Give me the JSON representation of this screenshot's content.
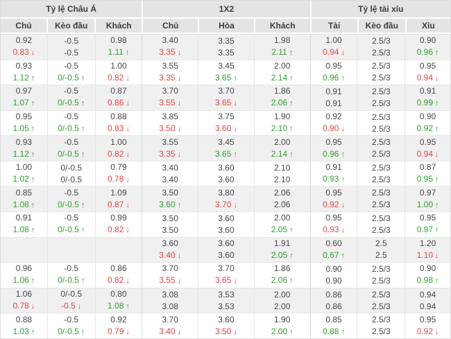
{
  "table": {
    "groups": [
      {
        "label": "Tỷ lệ Châu Á",
        "cols": [
          "Chủ",
          "Kèo đầu",
          "Khách"
        ]
      },
      {
        "label": "1X2",
        "cols": [
          "Chủ",
          "Hòa",
          "Khách"
        ]
      },
      {
        "label": "Tỷ lệ tài xỉu",
        "cols": [
          "Tài",
          "Kèo đầu",
          "Xỉu"
        ]
      }
    ],
    "rows": [
      [
        {
          "t": "0.92",
          "b": "0.83",
          "d": "down"
        },
        {
          "t": "-0.5",
          "b": "-0.5",
          "d": ""
        },
        {
          "t": "0.98",
          "b": "1.11",
          "d": "up"
        },
        {
          "t": "3.40",
          "b": "3.35",
          "d": "down"
        },
        {
          "t": "3.35",
          "b": "3.35",
          "d": ""
        },
        {
          "t": "1.98",
          "b": "2.11",
          "d": "up"
        },
        {
          "t": "1.00",
          "b": "0.94",
          "d": "down"
        },
        {
          "t": "2.5/3",
          "b": "2.5/3",
          "d": ""
        },
        {
          "t": "0.90",
          "b": "0.96",
          "d": "up"
        }
      ],
      [
        {
          "t": "0.93",
          "b": "1.12",
          "d": "up"
        },
        {
          "t": "-0.5",
          "b": "0/-0.5",
          "d": "up"
        },
        {
          "t": "1.00",
          "b": "0.82",
          "d": "down"
        },
        {
          "t": "3.55",
          "b": "3.35",
          "d": "down"
        },
        {
          "t": "3.45",
          "b": "3.65",
          "d": "up"
        },
        {
          "t": "2.00",
          "b": "2.14",
          "d": "up"
        },
        {
          "t": "0.95",
          "b": "0.96",
          "d": "up"
        },
        {
          "t": "2.5/3",
          "b": "2.5/3",
          "d": ""
        },
        {
          "t": "0.95",
          "b": "0.94",
          "d": "down"
        }
      ],
      [
        {
          "t": "0.97",
          "b": "1.07",
          "d": "up"
        },
        {
          "t": "-0.5",
          "b": "0/-0.5",
          "d": "up"
        },
        {
          "t": "0.87",
          "b": "0.86",
          "d": "down"
        },
        {
          "t": "3.70",
          "b": "3.55",
          "d": "down"
        },
        {
          "t": "3.70",
          "b": "3.65",
          "d": "down"
        },
        {
          "t": "1.86",
          "b": "2.06",
          "d": "up"
        },
        {
          "t": "0.91",
          "b": "0.91",
          "d": ""
        },
        {
          "t": "2.5/3",
          "b": "2.5/3",
          "d": ""
        },
        {
          "t": "0.91",
          "b": "0.99",
          "d": "up"
        }
      ],
      [
        {
          "t": "0.95",
          "b": "1.05",
          "d": "up"
        },
        {
          "t": "-0.5",
          "b": "0/-0.5",
          "d": "up"
        },
        {
          "t": "0.88",
          "b": "0.83",
          "d": "down"
        },
        {
          "t": "3.85",
          "b": "3.50",
          "d": "down"
        },
        {
          "t": "3.75",
          "b": "3.60",
          "d": "down"
        },
        {
          "t": "1.90",
          "b": "2.10",
          "d": "up"
        },
        {
          "t": "0.92",
          "b": "0.90",
          "d": "down"
        },
        {
          "t": "2.5/3",
          "b": "2.5/3",
          "d": ""
        },
        {
          "t": "0.90",
          "b": "0.92",
          "d": "up"
        }
      ],
      [
        {
          "t": "0.93",
          "b": "1.12",
          "d": "up"
        },
        {
          "t": "-0.5",
          "b": "0/-0.5",
          "d": "up"
        },
        {
          "t": "1.00",
          "b": "0.82",
          "d": "down"
        },
        {
          "t": "3.55",
          "b": "3.35",
          "d": "down"
        },
        {
          "t": "3.45",
          "b": "3.65",
          "d": "up"
        },
        {
          "t": "2.00",
          "b": "2.14",
          "d": "up"
        },
        {
          "t": "0.95",
          "b": "0.96",
          "d": "up"
        },
        {
          "t": "2.5/3",
          "b": "2.5/3",
          "d": ""
        },
        {
          "t": "0.95",
          "b": "0.94",
          "d": "down"
        }
      ],
      [
        {
          "t": "1.00",
          "b": "1.02",
          "d": "up"
        },
        {
          "t": "0/-0.5",
          "b": "0/-0.5",
          "d": ""
        },
        {
          "t": "0.79",
          "b": "0.78",
          "d": "down"
        },
        {
          "t": "3.40",
          "b": "3.40",
          "d": ""
        },
        {
          "t": "3.60",
          "b": "3.60",
          "d": ""
        },
        {
          "t": "2.10",
          "b": "2.10",
          "d": ""
        },
        {
          "t": "0.91",
          "b": "0.93",
          "d": "up"
        },
        {
          "t": "2.5/3",
          "b": "2.5/3",
          "d": ""
        },
        {
          "t": "0.87",
          "b": "0.95",
          "d": "up"
        }
      ],
      [
        {
          "t": "0.85",
          "b": "1.08",
          "d": "up"
        },
        {
          "t": "-0.5",
          "b": "0/-0.5",
          "d": "up"
        },
        {
          "t": "1.09",
          "b": "0.87",
          "d": "down"
        },
        {
          "t": "3.50",
          "b": "3.60",
          "d": "up"
        },
        {
          "t": "3.80",
          "b": "3.70",
          "d": "down"
        },
        {
          "t": "2.06",
          "b": "2.06",
          "d": ""
        },
        {
          "t": "0.95",
          "b": "0.92",
          "d": "down"
        },
        {
          "t": "2.5/3",
          "b": "2.5/3",
          "d": ""
        },
        {
          "t": "0.97",
          "b": "1.00",
          "d": "up"
        }
      ],
      [
        {
          "t": "0.91",
          "b": "1.08",
          "d": "up"
        },
        {
          "t": "-0.5",
          "b": "0/-0.5",
          "d": "up"
        },
        {
          "t": "0.99",
          "b": "0.82",
          "d": "down"
        },
        {
          "t": "3.50",
          "b": "3.50",
          "d": ""
        },
        {
          "t": "3.60",
          "b": "3.60",
          "d": ""
        },
        {
          "t": "2.00",
          "b": "2.05",
          "d": "up"
        },
        {
          "t": "0.95",
          "b": "0.93",
          "d": "down"
        },
        {
          "t": "2.5/3",
          "b": "2.5/3",
          "d": ""
        },
        {
          "t": "0.95",
          "b": "0.97",
          "d": "up"
        }
      ],
      [
        {
          "t": "",
          "b": "",
          "d": ""
        },
        {
          "t": "",
          "b": "",
          "d": ""
        },
        {
          "t": "",
          "b": "",
          "d": ""
        },
        {
          "t": "3.60",
          "b": "3.40",
          "d": "down"
        },
        {
          "t": "3.60",
          "b": "3.60",
          "d": ""
        },
        {
          "t": "1.91",
          "b": "2.05",
          "d": "up"
        },
        {
          "t": "0.60",
          "b": "0.67",
          "d": "up"
        },
        {
          "t": "2.5",
          "b": "2.5",
          "d": ""
        },
        {
          "t": "1.20",
          "b": "1.10",
          "d": "down"
        }
      ],
      [
        {
          "t": "0.96",
          "b": "1.06",
          "d": "up"
        },
        {
          "t": "-0.5",
          "b": "0/-0.5",
          "d": "up"
        },
        {
          "t": "0.86",
          "b": "0.82",
          "d": "down"
        },
        {
          "t": "3.70",
          "b": "3.55",
          "d": "down"
        },
        {
          "t": "3.70",
          "b": "3.65",
          "d": "down"
        },
        {
          "t": "1.86",
          "b": "2.06",
          "d": "up"
        },
        {
          "t": "0.90",
          "b": "0.90",
          "d": ""
        },
        {
          "t": "2.5/3",
          "b": "2.5/3",
          "d": ""
        },
        {
          "t": "0.90",
          "b": "0.98",
          "d": "up"
        }
      ],
      [
        {
          "t": "1.06",
          "b": "0.78",
          "d": "down"
        },
        {
          "t": "0/-0.5",
          "b": "-0.5",
          "d": "down"
        },
        {
          "t": "0.80",
          "b": "1.08",
          "d": "up"
        },
        {
          "t": "3.08",
          "b": "3.08",
          "d": ""
        },
        {
          "t": "3.53",
          "b": "3.53",
          "d": ""
        },
        {
          "t": "2.00",
          "b": "2.00",
          "d": ""
        },
        {
          "t": "0.86",
          "b": "0.86",
          "d": ""
        },
        {
          "t": "2.5/3",
          "b": "2.5/3",
          "d": ""
        },
        {
          "t": "0.94",
          "b": "0.94",
          "d": ""
        }
      ],
      [
        {
          "t": "0.88",
          "b": "1.03",
          "d": "up"
        },
        {
          "t": "-0.5",
          "b": "0/-0.5",
          "d": "up"
        },
        {
          "t": "0.92",
          "b": "0.79",
          "d": "down"
        },
        {
          "t": "3.70",
          "b": "3.40",
          "d": "down"
        },
        {
          "t": "3.60",
          "b": "3.50",
          "d": "down"
        },
        {
          "t": "1.90",
          "b": "2.00",
          "d": "up"
        },
        {
          "t": "0.85",
          "b": "0.88",
          "d": "up"
        },
        {
          "t": "2.5/3",
          "b": "2.5/3",
          "d": ""
        },
        {
          "t": "0.95",
          "b": "0.92",
          "d": "down"
        }
      ]
    ]
  },
  "icons": {
    "up_arrow": "↑",
    "down_arrow": "↓"
  },
  "colors": {
    "up": "#2e9e2e",
    "down": "#e24444",
    "text": "#474747",
    "header_bg": "#e4e4e4",
    "stripe_bg": "#f0f0f0",
    "border": "#e6e6e6"
  }
}
